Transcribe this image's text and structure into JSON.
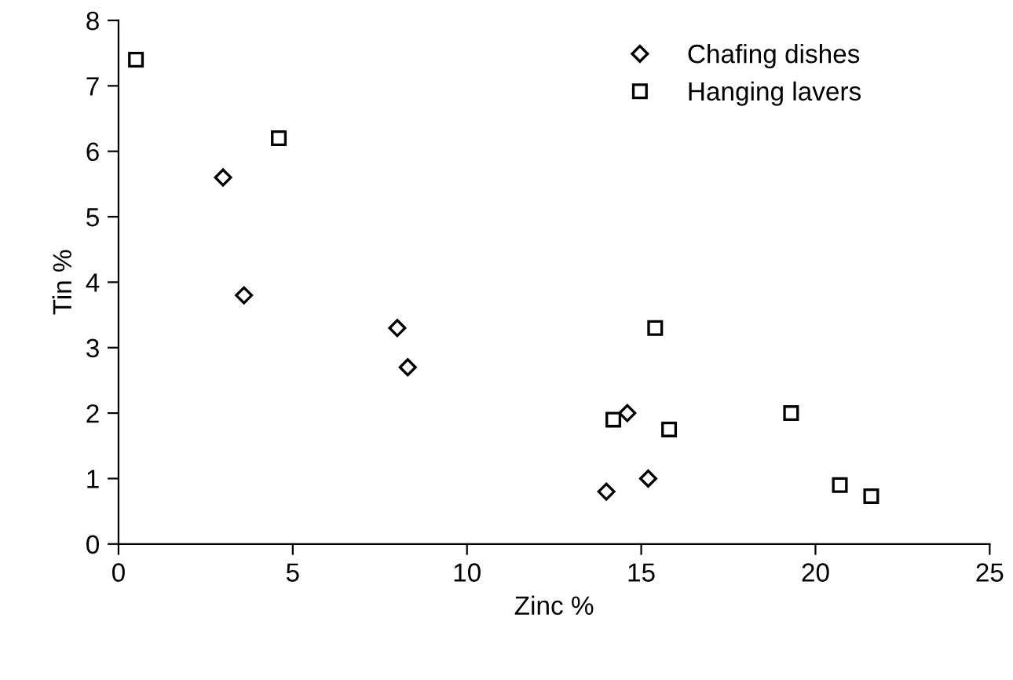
{
  "chart_data": {
    "type": "scatter",
    "xlabel": "Zinc %",
    "ylabel": "Tin %",
    "xlim": [
      0,
      25
    ],
    "xticks": [
      0,
      5,
      10,
      15,
      20,
      25
    ],
    "ylim": [
      0,
      8
    ],
    "yticks": [
      0,
      1,
      2,
      3,
      4,
      5,
      6,
      7,
      8
    ],
    "grid": false,
    "legend": "top right",
    "series": [
      {
        "name": "Chafing dishes",
        "color": "#000000",
        "marker": "diamond",
        "x": [
          3.0,
          3.6,
          8.0,
          8.3,
          14.6,
          14.0,
          15.2
        ],
        "values": [
          5.6,
          3.8,
          3.3,
          2.7,
          2.0,
          0.8,
          1.0
        ]
      },
      {
        "name": "Hanging lavers",
        "color": "#000000",
        "marker": "square",
        "x": [
          0.5,
          4.6,
          15.4,
          14.2,
          15.8,
          19.3,
          20.7,
          21.6
        ],
        "values": [
          7.4,
          6.2,
          3.3,
          1.9,
          1.75,
          2.0,
          0.9,
          0.73
        ]
      }
    ]
  }
}
